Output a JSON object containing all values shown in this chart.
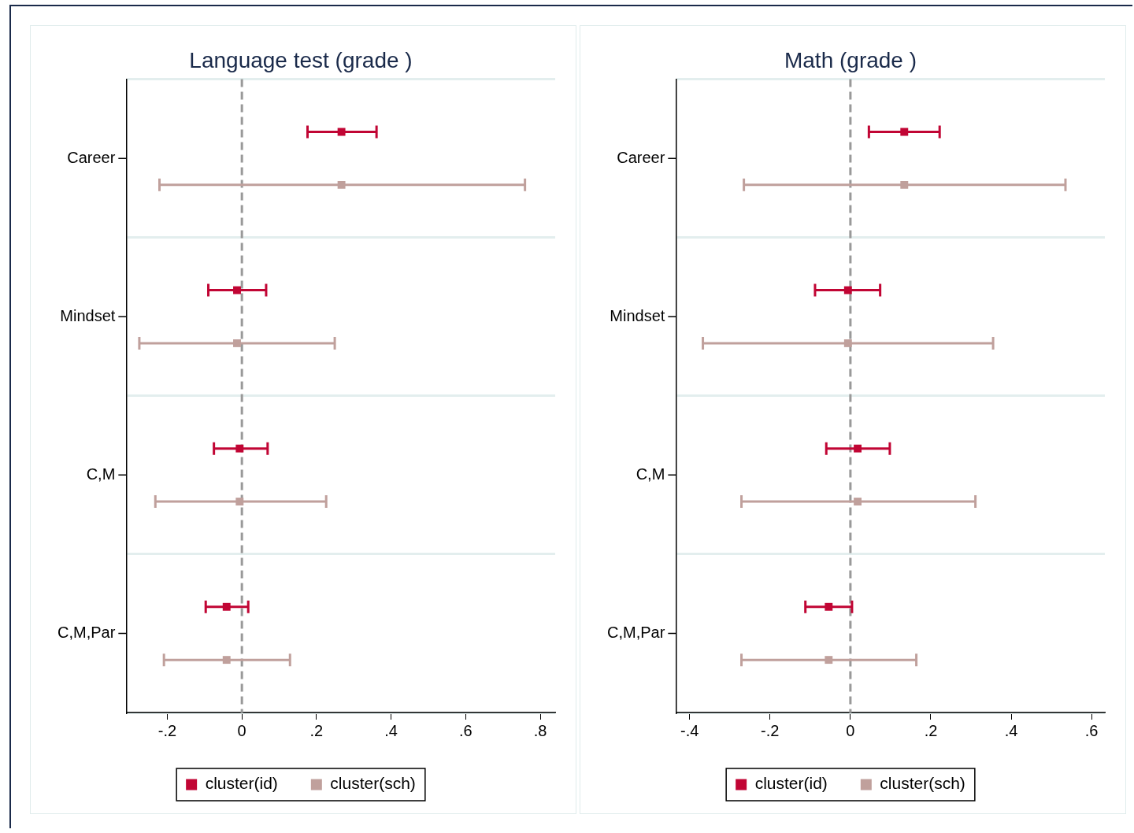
{
  "chart_data": [
    {
      "type": "scatter",
      "title": "Language test (grade )",
      "categories": [
        "Career",
        "Mindset",
        "C,M",
        "C,M,Par"
      ],
      "series": [
        {
          "name": "cluster(id)",
          "color": "#c10534",
          "values": [
            0.267,
            -0.013,
            -0.006,
            -0.041
          ],
          "errors": [
            [
              0.176,
              0.361
            ],
            [
              -0.09,
              0.065
            ],
            [
              -0.075,
              0.069
            ],
            [
              -0.097,
              0.017
            ]
          ]
        },
        {
          "name": "cluster(sch)",
          "color": "#c0a09c",
          "values": [
            0.267,
            -0.013,
            -0.006,
            -0.041
          ],
          "errors": [
            [
              -0.221,
              0.759
            ],
            [
              -0.275,
              0.249
            ],
            [
              -0.232,
              0.226
            ],
            [
              -0.209,
              0.129
            ]
          ]
        }
      ],
      "orientation": "horizontal",
      "xlim": [
        -0.31,
        0.84
      ],
      "xticks": [
        {
          "value": -0.2,
          "label": "-.2"
        },
        {
          "value": 0,
          "label": "0"
        },
        {
          "value": 0.2,
          "label": ".2"
        },
        {
          "value": 0.4,
          "label": ".4"
        },
        {
          "value": 0.6,
          "label": ".6"
        },
        {
          "value": 0.8,
          "label": ".8"
        }
      ],
      "ref_lines": [
        {
          "axis": "x",
          "value": 0,
          "color": "#999999",
          "line_style": "dashed"
        }
      ],
      "grid": "y",
      "legend": "bottom",
      "marker": "square"
    },
    {
      "type": "scatter",
      "title": "Math (grade )",
      "categories": [
        "Career",
        "Mindset",
        "C,M",
        "C,M,Par"
      ],
      "series": [
        {
          "name": "cluster(id)",
          "color": "#c10534",
          "values": [
            0.134,
            -0.006,
            0.018,
            -0.054
          ],
          "errors": [
            [
              0.046,
              0.222
            ],
            [
              -0.088,
              0.074
            ],
            [
              -0.06,
              0.098
            ],
            [
              -0.112,
              0.004
            ]
          ]
        },
        {
          "name": "cluster(sch)",
          "color": "#c0a09c",
          "values": [
            0.134,
            -0.006,
            0.018,
            -0.054
          ],
          "errors": [
            [
              -0.265,
              0.535
            ],
            [
              -0.367,
              0.355
            ],
            [
              -0.271,
              0.311
            ],
            [
              -0.271,
              0.164
            ]
          ]
        }
      ],
      "orientation": "horizontal",
      "xlim": [
        -0.434,
        0.633
      ],
      "xticks": [
        {
          "value": -0.4,
          "label": "-.4"
        },
        {
          "value": -0.2,
          "label": "-.2"
        },
        {
          "value": 0,
          "label": "0"
        },
        {
          "value": 0.2,
          "label": ".2"
        },
        {
          "value": 0.4,
          "label": ".4"
        },
        {
          "value": 0.6,
          "label": ".6"
        }
      ],
      "ref_lines": [
        {
          "axis": "x",
          "value": 0,
          "color": "#999999",
          "line_style": "dashed"
        }
      ],
      "grid": "y",
      "legend": "bottom",
      "marker": "square"
    }
  ]
}
